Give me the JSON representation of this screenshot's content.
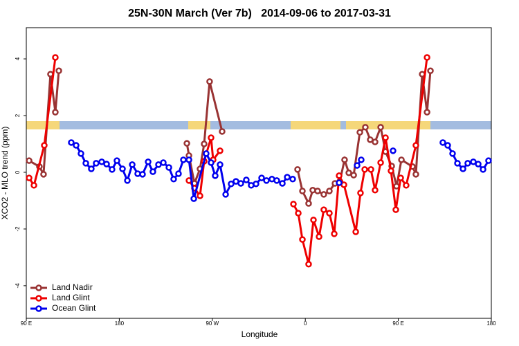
{
  "chart_data": {
    "type": "line",
    "title": "25N-30N March (Ver 7b)   2014-09-06 to 2017-03-31",
    "x_label": "Longitude",
    "y_label": "XCO2 - MLO trend (ppm)",
    "xlim": [
      90,
      540
    ],
    "ylim": [
      -5.15,
      5.1
    ],
    "xticks": [
      {
        "value": 90,
        "label": "90 E"
      },
      {
        "value": 180,
        "label": "180"
      },
      {
        "value": 270,
        "label": "90 W"
      },
      {
        "value": 360,
        "label": "0"
      },
      {
        "value": 450,
        "label": "90 E"
      },
      {
        "value": 540,
        "label": "180"
      }
    ],
    "yticks": [
      -4,
      -2,
      0,
      2,
      4
    ],
    "legend": "bottom-left",
    "series": [
      {
        "name": "Land Nadir",
        "color": "#993333",
        "x": [
          92.7,
          102.7,
          106.7,
          113.4,
          118.1,
          121.5,
          null,
          245.4,
          247.4,
          252.7,
          258.1,
          262.1,
          267.4,
          279.5,
          null,
          352.5,
          357.2,
          363.2,
          367.2,
          371.9,
          377.9,
          383.3,
          388.7,
          393.4,
          398.0,
          402.1,
          406.8,
          412.8,
          418.1,
          422.8,
          427.5,
          432.9,
          437.6,
          443.6,
          448.3,
          453.0,
          463.7,
          467.0,
          473.1,
          477.8,
          481.1
        ],
        "values": [
          0.41,
          0.2,
          -0.07,
          3.46,
          2.12,
          3.58,
          null,
          1.02,
          0.59,
          -0.39,
          0.12,
          1.0,
          3.2,
          1.44,
          null,
          0.1,
          -0.66,
          -1.1,
          -0.63,
          -0.66,
          -0.78,
          -0.66,
          -0.39,
          -0.32,
          0.44,
          -0.02,
          -0.1,
          1.41,
          1.59,
          1.15,
          1.07,
          1.59,
          0.73,
          0.22,
          -0.49,
          0.44,
          0.2,
          -0.07,
          3.46,
          2.12,
          3.58
        ]
      },
      {
        "name": "Land Glint",
        "color": "#ee0000",
        "x": [
          92.7,
          97.4,
          107.4,
          118.1,
          null,
          247.4,
          252.7,
          258.1,
          262.1,
          268.8,
          270.8,
          277.5,
          null,
          348.5,
          353.2,
          357.2,
          363.2,
          367.9,
          373.3,
          377.9,
          383.3,
          388.0,
          392.7,
          397.4,
          408.8,
          413.4,
          417.5,
          423.5,
          427.5,
          432.9,
          437.6,
          442.9,
          447.6,
          452.3,
          457.6,
          467.0,
          477.8
        ],
        "values": [
          -0.2,
          -0.46,
          0.95,
          4.05,
          null,
          -0.29,
          -0.56,
          -0.83,
          0.39,
          1.22,
          0.44,
          0.76,
          null,
          -1.12,
          -1.44,
          -2.37,
          -3.24,
          -1.68,
          -2.27,
          -1.32,
          -1.44,
          -2.17,
          -0.12,
          -0.44,
          -2.1,
          -0.73,
          0.1,
          0.1,
          -0.63,
          0.34,
          1.22,
          0.05,
          -1.32,
          -0.2,
          -0.46,
          0.95,
          4.05
        ]
      },
      {
        "name": "Ocean Glint",
        "color": "#0000ee",
        "x": [
          133.5,
          138.2,
          142.9,
          147.6,
          152.9,
          157.6,
          163.0,
          167.7,
          173.0,
          177.7,
          183.1,
          187.8,
          192.5,
          197.8,
          202.5,
          207.9,
          212.5,
          217.9,
          222.6,
          228.0,
          232.6,
          237.3,
          242.0,
          247.4,
          252.1,
          264.1,
          268.8,
          272.8,
          277.5,
          282.9,
          288.2,
          292.9,
          297.6,
          302.9,
          307.6,
          312.3,
          317.7,
          322.4,
          327.7,
          332.4,
          337.8,
          342.5,
          347.8,
          null,
          392.7,
          null,
          410.1,
          414.1,
          null,
          444.9,
          null,
          493.1,
          497.8,
          502.5,
          507.2,
          512.6,
          517.2,
          522.6,
          527.3,
          532.0,
          537.3
        ],
        "values": [
          1.05,
          0.95,
          0.66,
          0.32,
          0.12,
          0.32,
          0.37,
          0.29,
          0.1,
          0.41,
          0.12,
          -0.29,
          0.27,
          -0.05,
          -0.07,
          0.37,
          0.02,
          0.27,
          0.34,
          0.17,
          -0.24,
          -0.05,
          0.44,
          0.44,
          -0.93,
          0.66,
          0.34,
          -0.12,
          0.27,
          -0.78,
          -0.41,
          -0.32,
          -0.39,
          -0.27,
          -0.46,
          -0.41,
          -0.2,
          -0.29,
          -0.24,
          -0.29,
          -0.39,
          -0.17,
          -0.24,
          null,
          -0.37,
          null,
          0.24,
          0.44,
          null,
          0.76,
          null,
          1.05,
          0.95,
          0.66,
          0.32,
          0.12,
          0.32,
          0.37,
          0.29,
          0.1,
          0.41
        ]
      }
    ]
  }
}
